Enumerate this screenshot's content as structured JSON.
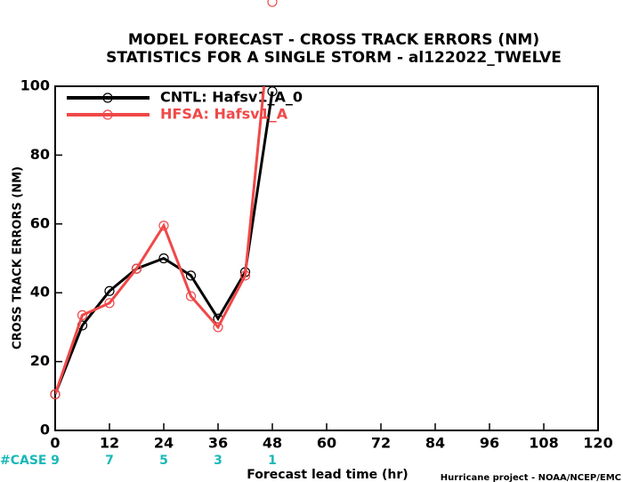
{
  "chart_data": {
    "type": "line",
    "title": "MODEL FORECAST - CROSS TRACK ERRORS (NM)",
    "subtitle": "STATISTICS FOR A SINGLE STORM - al122022_TWELVE",
    "x_label": "Forecast lead time (hr)",
    "y_label": "CROSS TRACK ERRORS (NM)",
    "credit": "Hurricane project - NOAA/NCEP/EMC",
    "x": [
      0,
      6,
      12,
      18,
      24,
      30,
      36,
      42,
      48
    ],
    "series": [
      {
        "name": "CNTL: Hafsv1_A_0",
        "color": "#000000",
        "values": [
          10.5,
          30.5,
          40.5,
          47,
          50,
          45,
          32.5,
          46,
          98.5
        ]
      },
      {
        "name": "HFSA: Hafsv1_A",
        "color": "#f04848",
        "values": [
          10.5,
          33.5,
          37,
          47,
          59.5,
          39,
          30,
          45,
          124.5
        ]
      }
    ],
    "xlim": [
      0,
      120
    ],
    "xticks": [
      0,
      12,
      24,
      36,
      48,
      60,
      72,
      84,
      96,
      108,
      120
    ],
    "ylim": [
      0,
      100
    ],
    "yticks": [
      0,
      20,
      40,
      60,
      80,
      100
    ],
    "cases": {
      "label": "#CASE",
      "x": [
        0,
        12,
        24,
        36,
        48
      ],
      "values": [
        9,
        7,
        5,
        3,
        1
      ],
      "color": "#1ab8b8"
    }
  }
}
